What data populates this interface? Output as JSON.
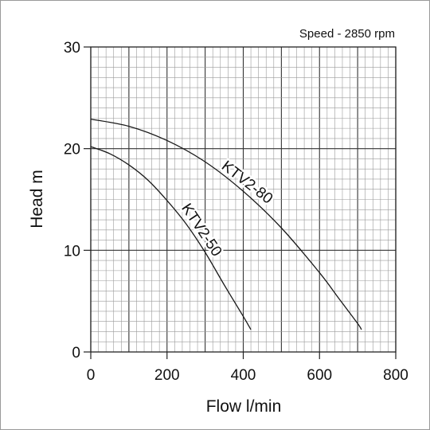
{
  "chart_data": {
    "type": "line",
    "annotation": "Speed - 2850 rpm",
    "xlabel": "Flow l/min",
    "ylabel": "Head m",
    "xlim": [
      0,
      800
    ],
    "ylim": [
      0,
      30
    ],
    "x_ticks": [
      "0",
      "200",
      "400",
      "600",
      "800"
    ],
    "y_ticks": [
      "0",
      "10",
      "20",
      "30"
    ],
    "grid": true,
    "colors": {
      "curve": "#1a1a1a",
      "grid_minor": "#9a9a9a",
      "grid_major": "#333333"
    },
    "series": [
      {
        "name": "KTV2-50",
        "x": [
          0,
          50,
          100,
          150,
          200,
          250,
          300,
          350,
          400,
          420
        ],
        "y": [
          20.2,
          19.5,
          18.4,
          16.9,
          14.9,
          12.6,
          9.8,
          6.6,
          3.5,
          2.2
        ]
      },
      {
        "name": "KTV2-80",
        "x": [
          0,
          100,
          200,
          300,
          400,
          500,
          600,
          650,
          700,
          710
        ],
        "y": [
          22.9,
          22.2,
          20.8,
          18.7,
          15.8,
          12.2,
          7.8,
          5.3,
          2.8,
          2.2
        ]
      }
    ]
  }
}
